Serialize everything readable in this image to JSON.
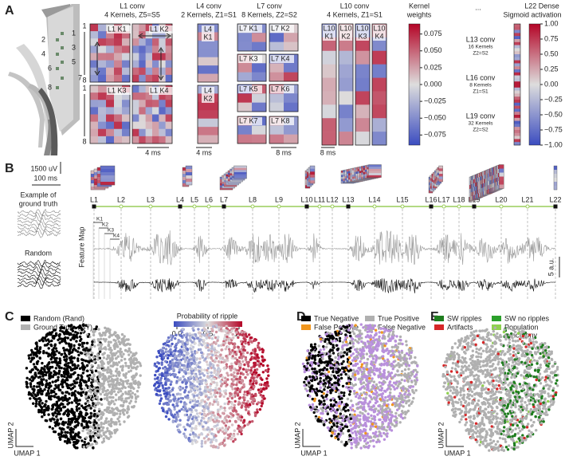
{
  "panel_labels": [
    "A",
    "B",
    "C",
    "D",
    "E"
  ],
  "panel_a": {
    "probe_channels": [
      "1",
      "2",
      "3",
      "4",
      "5",
      "6",
      "7",
      "8"
    ],
    "channel_axis": [
      "1",
      "8"
    ],
    "layers": [
      {
        "title": "L1 conv",
        "subtitle": "4 Kernels, Z5=S5",
        "kernels": [
          "L1 K1",
          "L1 K2",
          "L1 K3",
          "L1 K4"
        ],
        "scale_bar": "4 ms"
      },
      {
        "title": "L4 conv",
        "subtitle": "2 Kernels, Z1=S1",
        "kernels": [
          [
            "L4",
            "K1"
          ],
          [
            "L4",
            "K2"
          ]
        ],
        "scale_bar": "4 ms"
      },
      {
        "title": "L7 conv",
        "subtitle": "8 Kernels, Z2=S2",
        "kernels": [
          "L7 K1",
          "L7 K2",
          "L7 K3",
          "L7 K4",
          "L7 K5",
          "L7 K6",
          "L7 K7",
          "L7 K8"
        ],
        "scale_bar": "8 ms"
      },
      {
        "title": "L10 conv",
        "subtitle": "4 Kernels, Z1=S1",
        "kernels": [
          [
            "L10",
            "K1"
          ],
          [
            "L10",
            "K2"
          ],
          [
            "L10",
            "K3"
          ],
          [
            "L10",
            "K4"
          ]
        ],
        "scale_bar": "8 ms"
      }
    ],
    "kernel_weights": {
      "title": [
        "Kernel",
        "weights"
      ],
      "lim": [
        -0.09,
        0.09
      ],
      "ticks": [
        0.075,
        {
          "value": 0.05,
          "label": "0.050"
        },
        0.025,
        {
          "value": 0,
          "label": "0.000"
        },
        {
          "value": -0.025,
          "label": "−0.025"
        },
        {
          "value": -0.05,
          "label": "−0.050"
        },
        {
          "value": -0.075,
          "label": "−0.075"
        }
      ]
    },
    "ellipsis": "...",
    "deep_layers": [
      {
        "title": "L13 conv",
        "kernels": "16 Kernels",
        "stride": "Z2=S2"
      },
      {
        "title": "L16 conv",
        "kernels": "8 Kernels",
        "stride": "Z1=S1"
      },
      {
        "title": "L19 conv",
        "kernels": "32 Kernels",
        "stride": "Z2=S2"
      }
    ],
    "dense": {
      "title": "L22 Dense",
      "subtitle": "Sigmoid activation",
      "lim": [
        -1,
        1
      ],
      "ticks": [
        {
          "value": 1,
          "label": "1.00"
        },
        {
          "value": 0.75,
          "label": "0.75"
        },
        {
          "value": 0.5,
          "label": "0.50"
        },
        {
          "value": 0.25,
          "label": "0.25"
        },
        {
          "value": 0,
          "label": "0.00"
        },
        {
          "value": -0.25,
          "label": "−0.25"
        },
        {
          "value": -0.5,
          "label": "−0.50"
        },
        {
          "value": -0.75,
          "label": "−0.75"
        },
        {
          "value": -1,
          "label": "−1.00"
        }
      ]
    }
  },
  "panel_b": {
    "scale_bar": [
      "1500 uV",
      "100 ms"
    ],
    "example_label": [
      "Example of",
      "ground truth"
    ],
    "random_label": "Random",
    "layers": [
      "L1",
      "L2",
      "L3",
      "L4",
      "L5",
      "L6",
      "L7",
      "L8",
      "L9",
      "L10",
      "L11",
      "L12",
      "L13",
      "L14",
      "L15",
      "L16",
      "L17",
      "L18",
      "L19",
      "L20",
      "L21",
      "L22"
    ],
    "kernels": [
      "K1",
      "K2",
      "K3",
      "K4"
    ],
    "y_label": "Feature Map",
    "amplitude_bar": "5 a.u."
  },
  "panel_c": {
    "legend": [
      {
        "name": "Random (Rand)",
        "color": "#000000"
      },
      {
        "name": "Ground Truth (GT)",
        "color": "#b0b0b0"
      }
    ],
    "colorbar": {
      "title": "Probability of ripple",
      "lim": [
        0,
        1
      ],
      "ticks": [
        {
          "value": 0,
          "label": "0.0"
        },
        0.5,
        {
          "value": 1,
          "label": "1.0"
        }
      ]
    },
    "x_label": "UMAP 1",
    "y_label": "UMAP 2"
  },
  "panel_d": {
    "legend": [
      {
        "name": "True Negative",
        "color": "#000000"
      },
      {
        "name": "False Positive",
        "color": "#f0961e"
      },
      {
        "name": "True Positive",
        "color": "#b0b0b0"
      },
      {
        "name": "False Negative",
        "color": "#b990dc"
      }
    ],
    "x_label": "UMAP 1",
    "y_label": "UMAP 2"
  },
  "panel_e": {
    "legend": [
      {
        "name": "SW ripples",
        "color": "#1e7d1e"
      },
      {
        "name": "Artifacts",
        "color": "#d62728"
      },
      {
        "name": "SW no ripples",
        "color": "#2ca02c"
      },
      {
        "name": [
          "Population",
          "synchrony"
        ],
        "color": "#8fd14f"
      }
    ],
    "x_label": "UMAP 1",
    "y_label": "UMAP 2"
  }
}
